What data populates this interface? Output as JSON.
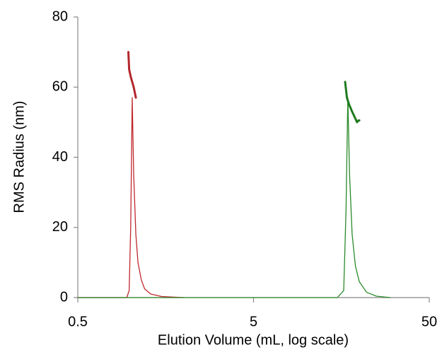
{
  "chart_data": {
    "type": "line",
    "x_label": "Elution Volume (mL, log scale)",
    "y_label": "RMS Radius (nm)",
    "xlog": true,
    "xlim": [
      0.5,
      50
    ],
    "xticks": [
      0.5,
      5,
      50
    ],
    "ylim": [
      0,
      80
    ],
    "yticks": [
      0,
      20,
      40,
      60,
      80
    ],
    "series": [
      {
        "color": "#c0282d",
        "width": 1.3,
        "x": [
          0.5,
          0.95,
          0.98,
          1.0,
          1.02,
          1.04,
          1.07,
          1.1,
          1.15,
          1.2,
          1.3,
          1.5,
          2.0
        ],
        "values": [
          0,
          0,
          2,
          20,
          57,
          35,
          18,
          10,
          5,
          2.5,
          1,
          0.3,
          0
        ]
      },
      {
        "color": "#2a8a2a",
        "width": 1.3,
        "x": [
          0.5,
          15,
          16.3,
          16.8,
          17.2,
          17.6,
          18.2,
          19,
          20,
          22,
          25,
          30
        ],
        "values": [
          0,
          0,
          2,
          25,
          57,
          35,
          18,
          9,
          4.5,
          1.5,
          0.4,
          0
        ]
      },
      {
        "color": "#b3262b",
        "width": 3,
        "x": [
          0.97,
          0.98,
          1.0,
          1.04,
          1.07
        ],
        "values": [
          70,
          65,
          63,
          60,
          57
        ]
      },
      {
        "color": "#1f7a1f",
        "width": 3,
        "x": [
          16.6,
          17.0,
          17.5,
          18.2,
          19.0,
          19.4,
          19.8,
          20.0
        ],
        "values": [
          61.5,
          57,
          55,
          53,
          51,
          50,
          50.5,
          50.5
        ]
      }
    ]
  }
}
